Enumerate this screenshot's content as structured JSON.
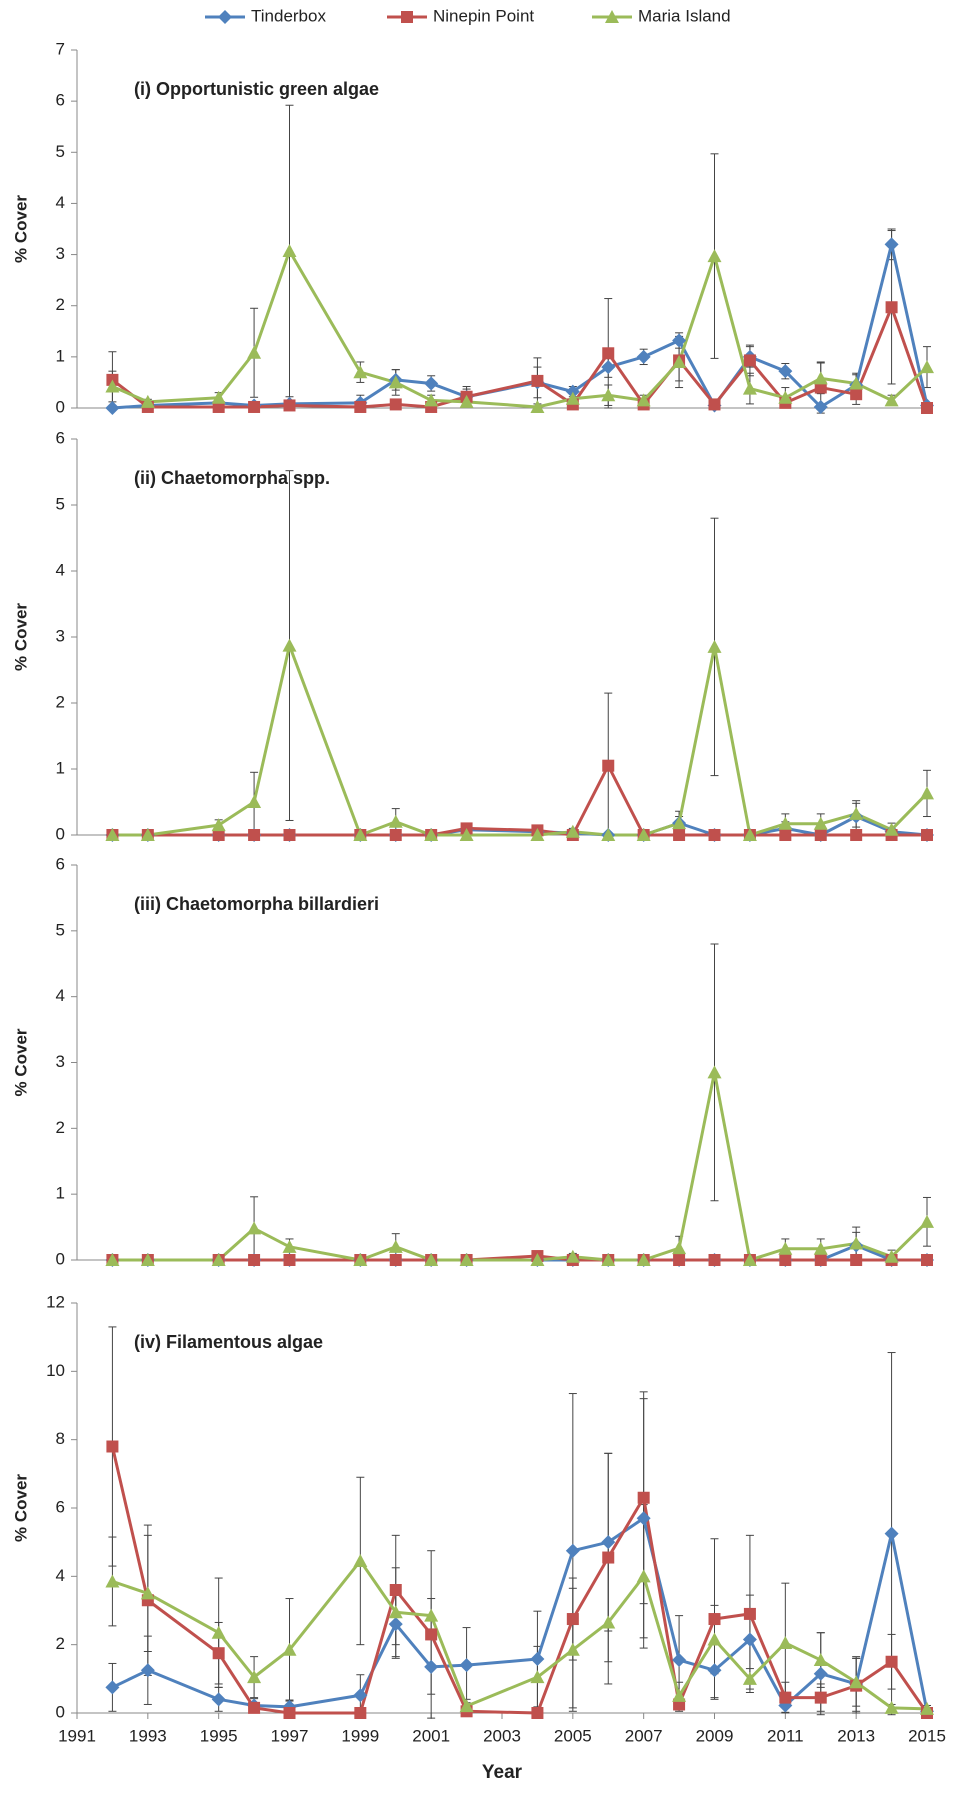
{
  "chart_data": [
    {
      "type": "line",
      "title": "(i) Opportunistic green algae",
      "y_label": "% Cover",
      "x": [
        1992,
        1993,
        1995,
        1996,
        1997,
        1999,
        2000,
        2001,
        2002,
        2004,
        2005,
        2006,
        2007,
        2008,
        2009,
        2010,
        2011,
        2012,
        2013,
        2014,
        2015
      ],
      "xlim": [
        1991,
        2015
      ],
      "ylim": [
        0,
        7
      ],
      "yticks": [
        0,
        1,
        2,
        3,
        4,
        5,
        6,
        7
      ],
      "series": [
        {
          "name": "Tinderbox",
          "color": "#4f81bd",
          "marker": "diamond",
          "values": [
            0,
            0.05,
            0.1,
            0.05,
            0.08,
            0.1,
            0.55,
            0.48,
            0.22,
            0.5,
            0.32,
            0.8,
            1.0,
            1.32,
            0.05,
            1.0,
            0.72,
            0.02,
            0.45,
            3.2,
            0.05
          ],
          "errors": [
            0,
            0.05,
            0.05,
            0.05,
            0.05,
            0.15,
            0.2,
            0.15,
            0.2,
            0.3,
            0.1,
            0.2,
            0.15,
            0.15,
            0.05,
            0.2,
            0.15,
            0.05,
            0.2,
            0.3,
            0.05
          ]
        },
        {
          "name": "Ninepin Point",
          "color": "#c0504d",
          "marker": "square",
          "values": [
            0.55,
            0.02,
            0.02,
            0.02,
            0.05,
            0.02,
            0.07,
            0.02,
            0.22,
            0.53,
            0.07,
            1.07,
            0.07,
            0.93,
            0.07,
            0.93,
            0.1,
            0.4,
            0.27,
            1.97,
            0
          ],
          "errors": [
            0.55,
            0.02,
            0.02,
            0.02,
            0.05,
            0.02,
            0.05,
            0.02,
            0.15,
            0.45,
            0.05,
            1.07,
            0.1,
            0.4,
            0.1,
            0.3,
            0.1,
            0.5,
            0.2,
            1.5,
            0
          ]
        },
        {
          "name": "Maria Island",
          "color": "#9bbb59",
          "marker": "triangle",
          "values": [
            0.42,
            0.12,
            0.2,
            1.08,
            3.07,
            0.7,
            0.5,
            0.15,
            0.12,
            0.02,
            0.18,
            0.25,
            0.15,
            0.9,
            2.97,
            0.38,
            0.2,
            0.58,
            0.48,
            0.15,
            0.8
          ],
          "errors": [
            0.3,
            0.05,
            0.1,
            0.87,
            2.85,
            0.2,
            0.25,
            0.1,
            0.05,
            0.02,
            0.1,
            0.2,
            0.1,
            0.5,
            2.0,
            0.3,
            0.2,
            0.3,
            0.2,
            0.1,
            0.4
          ]
        }
      ]
    },
    {
      "type": "line",
      "title": "(ii) Chaetomorpha spp.",
      "y_label": "% Cover",
      "x": [
        1992,
        1993,
        1995,
        1996,
        1997,
        1999,
        2000,
        2001,
        2002,
        2004,
        2005,
        2006,
        2007,
        2008,
        2009,
        2010,
        2011,
        2012,
        2013,
        2014,
        2015
      ],
      "xlim": [
        1991,
        2015
      ],
      "ylim": [
        0,
        6
      ],
      "yticks": [
        0,
        1,
        2,
        3,
        4,
        5,
        6
      ],
      "series": [
        {
          "name": "Tinderbox",
          "color": "#4f81bd",
          "marker": "diamond",
          "values": [
            0,
            0,
            0,
            0,
            0,
            0,
            0,
            0,
            0.08,
            0.05,
            0.03,
            0,
            0,
            0.18,
            0,
            0,
            0.1,
            0,
            0.28,
            0.05,
            0
          ],
          "errors": [
            0,
            0,
            0,
            0,
            0,
            0,
            0,
            0,
            0.08,
            0.05,
            0.03,
            0,
            0,
            0.18,
            0,
            0,
            0.1,
            0,
            0.2,
            0.05,
            0
          ]
        },
        {
          "name": "Ninepin Point",
          "color": "#c0504d",
          "marker": "square",
          "values": [
            0,
            0,
            0,
            0,
            0,
            0,
            0,
            0,
            0.1,
            0.07,
            0,
            1.05,
            0,
            0,
            0,
            0,
            0,
            0,
            0,
            0,
            0
          ],
          "errors": [
            0,
            0,
            0,
            0,
            0,
            0,
            0,
            0,
            0.08,
            0.05,
            0,
            1.1,
            0,
            0,
            0,
            0,
            0,
            0,
            0,
            0,
            0
          ]
        },
        {
          "name": "Maria Island",
          "color": "#9bbb59",
          "marker": "triangle",
          "values": [
            0,
            0,
            0.15,
            0.5,
            2.87,
            0,
            0.2,
            0,
            0,
            0,
            0.05,
            0,
            0,
            0.18,
            2.85,
            0,
            0.17,
            0.17,
            0.32,
            0.08,
            0.63
          ],
          "errors": [
            0,
            0,
            0.08,
            0.45,
            2.65,
            0,
            0.2,
            0,
            0,
            0,
            0.05,
            0,
            0,
            0.1,
            1.95,
            0,
            0.15,
            0.15,
            0.2,
            0.1,
            0.35
          ]
        }
      ]
    },
    {
      "type": "line",
      "title": "(iii) Chaetomorpha billardieri",
      "y_label": "% Cover",
      "x": [
        1992,
        1993,
        1995,
        1996,
        1997,
        1999,
        2000,
        2001,
        2002,
        2004,
        2005,
        2006,
        2007,
        2008,
        2009,
        2010,
        2011,
        2012,
        2013,
        2014,
        2015
      ],
      "xlim": [
        1991,
        2015
      ],
      "ylim": [
        0,
        6
      ],
      "yticks": [
        0,
        1,
        2,
        3,
        4,
        5,
        6
      ],
      "series": [
        {
          "name": "Tinderbox",
          "color": "#4f81bd",
          "marker": "diamond",
          "values": [
            0,
            0,
            0,
            0,
            0,
            0,
            0,
            0,
            0,
            0,
            0,
            0,
            0,
            0,
            0,
            0,
            0,
            0,
            0.22,
            0,
            0
          ],
          "errors": [
            0,
            0,
            0,
            0,
            0,
            0,
            0,
            0,
            0,
            0,
            0,
            0,
            0,
            0,
            0,
            0,
            0,
            0,
            0.2,
            0,
            0
          ]
        },
        {
          "name": "Ninepin Point",
          "color": "#c0504d",
          "marker": "square",
          "values": [
            0,
            0,
            0,
            0,
            0,
            0,
            0,
            0,
            0,
            0.06,
            0,
            0,
            0,
            0,
            0,
            0,
            0,
            0,
            0,
            0,
            0
          ],
          "errors": [
            0,
            0,
            0,
            0,
            0,
            0,
            0,
            0,
            0,
            0.04,
            0,
            0,
            0,
            0,
            0,
            0,
            0,
            0,
            0,
            0,
            0
          ]
        },
        {
          "name": "Maria Island",
          "color": "#9bbb59",
          "marker": "triangle",
          "values": [
            0,
            0,
            0,
            0.48,
            0.2,
            0,
            0.2,
            0,
            0,
            0,
            0.05,
            0,
            0,
            0.18,
            2.85,
            0,
            0.17,
            0.17,
            0.25,
            0.05,
            0.58
          ],
          "errors": [
            0,
            0,
            0,
            0.48,
            0.12,
            0,
            0.2,
            0,
            0,
            0,
            0.05,
            0,
            0,
            0.18,
            1.95,
            0,
            0.15,
            0.15,
            0.25,
            0.1,
            0.37
          ]
        }
      ]
    },
    {
      "type": "line",
      "title": "(iv) Filamentous algae",
      "y_label": "% Cover",
      "x_label": "Year",
      "x": [
        1992,
        1993,
        1995,
        1996,
        1997,
        1999,
        2000,
        2001,
        2002,
        2004,
        2005,
        2006,
        2007,
        2008,
        2009,
        2010,
        2011,
        2012,
        2013,
        2014,
        2015
      ],
      "xlim": [
        1991,
        2015
      ],
      "xticks": [
        1991,
        1993,
        1995,
        1997,
        1999,
        2001,
        2003,
        2005,
        2007,
        2009,
        2011,
        2013,
        2015
      ],
      "ylim": [
        0,
        12
      ],
      "yticks": [
        0,
        2,
        4,
        6,
        8,
        10,
        12
      ],
      "series": [
        {
          "name": "Tinderbox",
          "color": "#4f81bd",
          "marker": "diamond",
          "values": [
            0.75,
            1.25,
            0.4,
            0.22,
            0.18,
            0.52,
            2.6,
            1.35,
            1.4,
            1.58,
            4.75,
            5.0,
            5.7,
            1.55,
            1.25,
            2.15,
            0.22,
            1.15,
            0.85,
            5.25,
            0.05
          ],
          "errors": [
            0.7,
            1.0,
            0.35,
            0.2,
            0.2,
            0.6,
            1.0,
            0.8,
            1.1,
            1.4,
            4.6,
            2.6,
            3.5,
            1.3,
            0.8,
            1.3,
            0.2,
            1.2,
            0.8,
            5.3,
            0.1
          ]
        },
        {
          "name": "Ninepin Point",
          "color": "#c0504d",
          "marker": "square",
          "values": [
            7.8,
            3.3,
            1.75,
            0.15,
            0,
            0,
            3.6,
            2.3,
            0.05,
            0,
            2.75,
            4.55,
            6.3,
            0.25,
            2.75,
            2.9,
            0.45,
            0.45,
            0.8,
            1.5,
            0
          ],
          "errors": [
            3.5,
            2.2,
            0.9,
            0.15,
            0,
            0,
            1.6,
            2.45,
            0.05,
            0,
            1.2,
            3.05,
            3.1,
            0.2,
            2.35,
            2.3,
            0.45,
            0.4,
            0.8,
            0.8,
            0
          ]
        },
        {
          "name": "Maria Island",
          "color": "#9bbb59",
          "marker": "triangle",
          "values": [
            3.85,
            3.5,
            2.35,
            1.05,
            1.85,
            4.45,
            2.95,
            2.85,
            0.2,
            1.05,
            1.85,
            2.65,
            4.0,
            0.5,
            2.15,
            1.0,
            2.05,
            1.55,
            0.9,
            0.15,
            0.12
          ],
          "errors": [
            1.3,
            1.7,
            1.6,
            0.6,
            1.5,
            2.45,
            1.3,
            0.5,
            0.2,
            0.9,
            1.8,
            1.8,
            2.1,
            0.4,
            1.0,
            0.3,
            1.75,
            0.8,
            0.7,
            0.1,
            0.1
          ]
        }
      ]
    }
  ]
}
